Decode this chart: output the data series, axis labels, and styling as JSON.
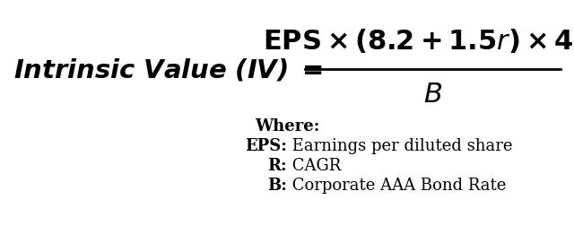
{
  "background_color": "#ffffff",
  "text_color": "#000000",
  "lhs_fontsize": 21,
  "numerator_fontsize": 22,
  "denominator_fontsize": 22,
  "where_fontsize": 13,
  "def_fontsize": 13,
  "definitions": [
    {
      "bold": "EPS:",
      "normal": " Earnings per diluted share"
    },
    {
      "bold": "R:",
      "normal": " CAGR"
    },
    {
      "bold": "B:",
      "normal": " Corporate AAA Bond Rate"
    }
  ]
}
